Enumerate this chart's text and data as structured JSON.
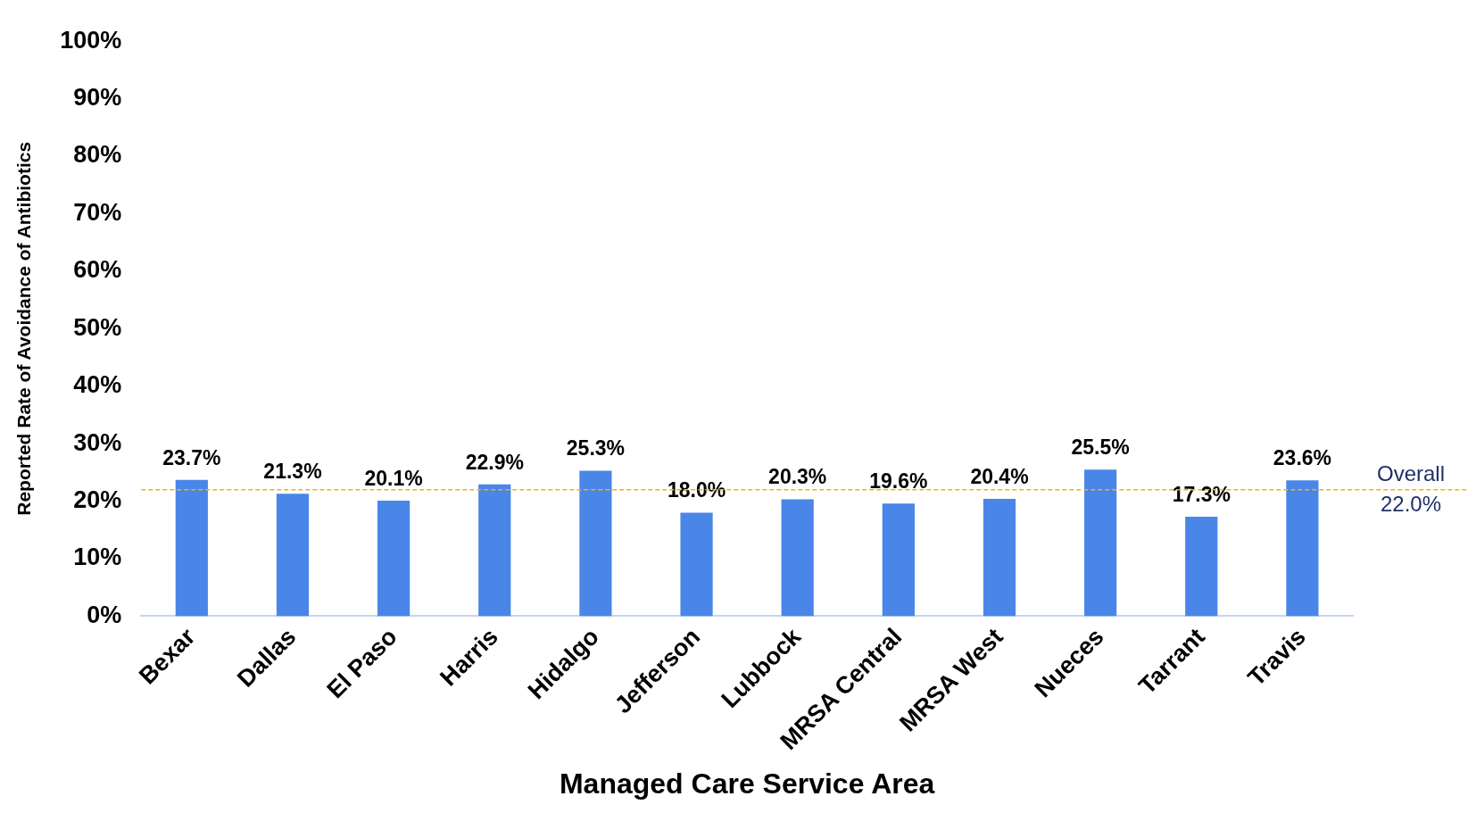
{
  "chart_data": {
    "type": "bar",
    "xlabel": "Managed Care Service Area",
    "ylabel": "Reported Rate of Avoidance of Antibiotics",
    "categories": [
      "Bexar",
      "Dallas",
      "El Paso",
      "Harris",
      "Hidalgo",
      "Jefferson",
      "Lubbock",
      "MRSA Central",
      "MRSA West",
      "Nueces",
      "Tarrant",
      "Travis"
    ],
    "values": [
      23.7,
      21.3,
      20.1,
      22.9,
      25.3,
      18.0,
      20.3,
      19.6,
      20.4,
      25.5,
      17.3,
      23.6
    ],
    "value_labels": [
      "23.7%",
      "21.3%",
      "20.1%",
      "22.9%",
      "25.3%",
      "18.0%",
      "20.3%",
      "19.6%",
      "20.4%",
      "25.5%",
      "17.3%",
      "23.6%"
    ],
    "color": "#4a86e8",
    "ylim": [
      0,
      100
    ],
    "yticks": [
      {
        "value": 0,
        "label": "0%"
      },
      {
        "value": 10,
        "label": "10%"
      },
      {
        "value": 20,
        "label": "20%"
      },
      {
        "value": 30,
        "label": "30%"
      },
      {
        "value": 40,
        "label": "40%"
      },
      {
        "value": 50,
        "label": "50%"
      },
      {
        "value": 60,
        "label": "60%"
      },
      {
        "value": 70,
        "label": "70%"
      },
      {
        "value": 80,
        "label": "80%"
      },
      {
        "value": 90,
        "label": "90%"
      },
      {
        "value": 100,
        "label": "100%"
      }
    ],
    "ref_lines": [
      {
        "axis": "y",
        "value": 22.0,
        "label": "Overall 22.0%",
        "color": "#f4b400",
        "line_style": "dashed"
      }
    ],
    "grid": false,
    "legend": false
  }
}
